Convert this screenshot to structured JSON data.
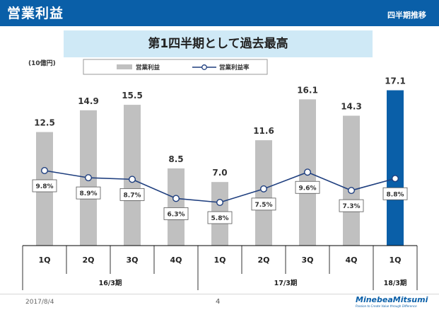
{
  "header": {
    "title": "営業利益",
    "subtitle": "四半期推移"
  },
  "banner": {
    "text": "第1四半期として過去最高"
  },
  "chart_data": {
    "type": "bar",
    "unit_label": "(10億円)",
    "categories": [
      "1Q",
      "2Q",
      "3Q",
      "4Q",
      "1Q",
      "2Q",
      "3Q",
      "4Q",
      "1Q"
    ],
    "groups": [
      {
        "label": "16/3期",
        "count": 4
      },
      {
        "label": "17/3期",
        "count": 4
      },
      {
        "label": "18/3期",
        "count": 1
      }
    ],
    "series": [
      {
        "name": "営業利益",
        "kind": "bar",
        "values": [
          12.5,
          14.9,
          15.5,
          8.5,
          7.0,
          11.6,
          16.1,
          14.3,
          17.1
        ],
        "labels": [
          "12.5",
          "14.9",
          "15.5",
          "8.5",
          "7.0",
          "11.6",
          "16.1",
          "14.3",
          "17.1"
        ],
        "color": "#c0c0c0",
        "highlight_color": "#0a5fa8",
        "highlight_index": 8
      },
      {
        "name": "営業利益率",
        "kind": "line",
        "values": [
          9.8,
          8.9,
          8.7,
          6.3,
          5.8,
          7.5,
          9.6,
          7.3,
          8.8
        ],
        "labels": [
          "9.8%",
          "8.9%",
          "8.7%",
          "6.3%",
          "5.8%",
          "7.5%",
          "9.6%",
          "7.3%",
          "8.8%"
        ],
        "color": "#1f3f7f"
      }
    ],
    "ylim_bar": [
      0,
      18
    ],
    "ylim_line": [
      0,
      20
    ],
    "legend_position": "top"
  },
  "footer": {
    "date": "2017/8/4",
    "page": "4",
    "logo": "MinebeaMitsumi",
    "tagline": "Passion to Create Value through Difference"
  }
}
